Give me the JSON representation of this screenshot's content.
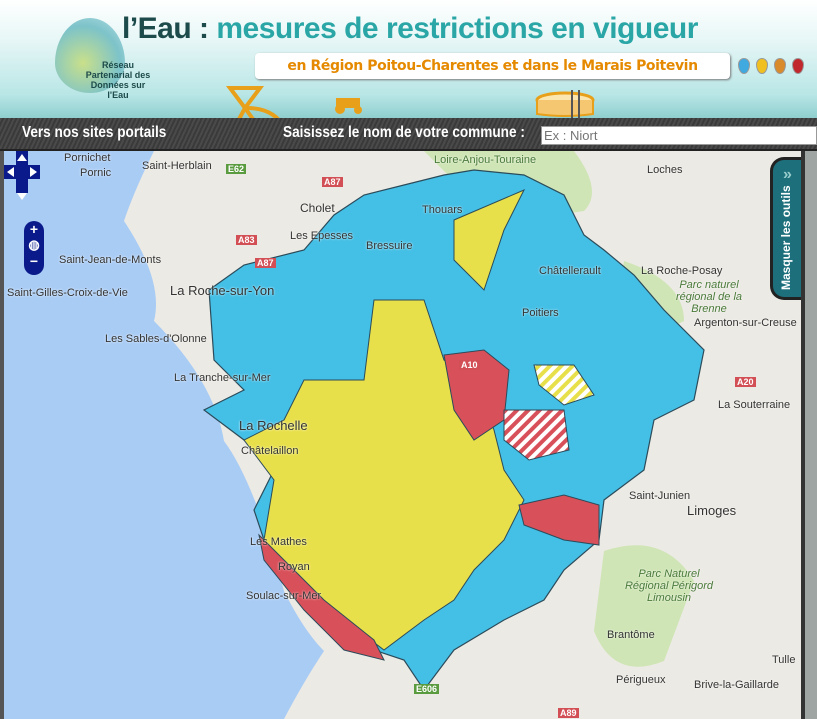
{
  "header": {
    "title_prefix": "l’Eau :",
    "title_main": "mesures de restrictions en vigueur",
    "subtitle": "en Région Poitou-Charentes et dans le Marais Poitevin",
    "logo_text": "Réseau Partenarial des Données sur l'Eau",
    "legend_drop_colors": [
      "#3fa9e0",
      "#f0c020",
      "#d98a2a",
      "#c0282d"
    ]
  },
  "navbar": {
    "portals_label": "Vers nos sites portails",
    "commune_label": "Saisissez le nom de votre commune :",
    "commune_placeholder": "Ex : Niort",
    "commune_value": ""
  },
  "map": {
    "tools_tab_label": "Masquer les outils",
    "colors": {
      "water": "#a9ccf5",
      "land": "#eceae4",
      "no_restriction": "#44bfe6",
      "alert": "#e8e04a",
      "crisis": "#d8505a",
      "outline": "#2b4b5a"
    },
    "places": [
      "Pornichet",
      "Saint-Herblain",
      "Pornic",
      "Saint-Jean-de-Monts",
      "Saint-Gilles-Croix-de-Vie",
      "La Roche-sur-Yon",
      "Les Sables-d'Olonne",
      "La Tranche-sur-Mer",
      "Cholet",
      "Les Epesses",
      "Bressuire",
      "Thouars",
      "Loire-Anjou-Touraine",
      "Loches",
      "Châtellerault",
      "La Roche-Posay",
      "Parc naturel régional de la Brenne",
      "Argenton-sur-Creuse",
      "Poitiers",
      "La Rochelle",
      "Châtelaillon",
      "La Souterraine",
      "Saint-Junien",
      "Limoges",
      "Parc Naturel Régional Périgord Limousin",
      "Royan",
      "Les Mathes",
      "Soulac-sur-Mer",
      "Brantôme",
      "Périgueux",
      "Brive-la-Gaillarde",
      "Tulle"
    ],
    "roads": [
      "E62",
      "A87",
      "A83",
      "A87",
      "A10",
      "A20",
      "E606",
      "A89"
    ]
  }
}
